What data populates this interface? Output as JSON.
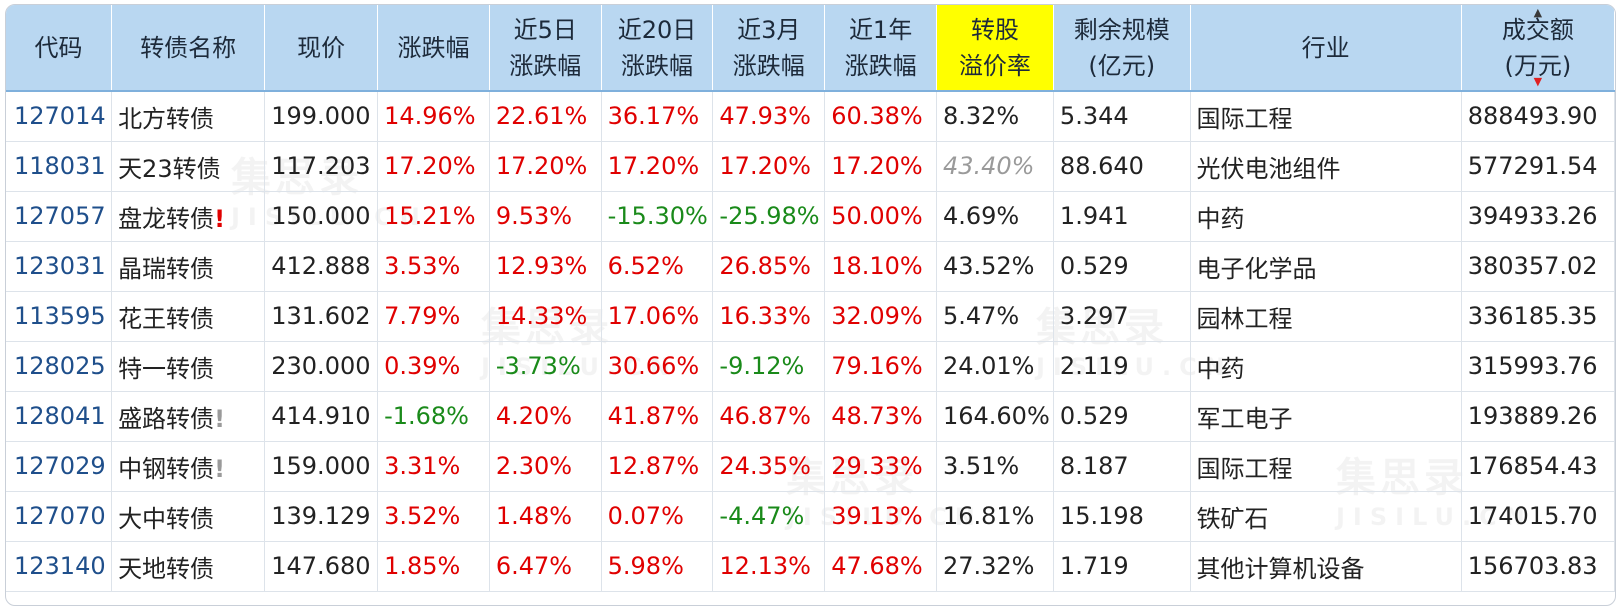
{
  "headers": {
    "code": "代码",
    "name": "转债名称",
    "price": "现价",
    "change": "涨跌幅",
    "chg5d": [
      "近5日",
      "涨跌幅"
    ],
    "chg20d": [
      "近20日",
      "涨跌幅"
    ],
    "chg3m": [
      "近3月",
      "涨跌幅"
    ],
    "chg1y": [
      "近1年",
      "涨跌幅"
    ],
    "premium": [
      "转股",
      "溢价率"
    ],
    "remaining": [
      "剩余规模",
      "(亿元)"
    ],
    "industry": "行业",
    "turnover": [
      "成交额",
      "(万元)"
    ]
  },
  "watermark": {
    "cn": "集思录",
    "en": "JISILU.CN"
  },
  "rows": [
    {
      "code": "127014",
      "name": "北方转债",
      "flag": "",
      "flag_color": "",
      "price": "199.000",
      "change": "14.96%",
      "chg5d": "22.61%",
      "chg20d": "36.17%",
      "chg3m": "47.93%",
      "chg1y": "60.38%",
      "premium": "8.32%",
      "premium_muted": false,
      "remaining": "5.344",
      "industry": "国际工程",
      "turnover": "888493.90"
    },
    {
      "code": "118031",
      "name": "天23转债",
      "flag": "",
      "flag_color": "",
      "price": "117.203",
      "change": "17.20%",
      "chg5d": "17.20%",
      "chg20d": "17.20%",
      "chg3m": "17.20%",
      "chg1y": "17.20%",
      "premium": "43.40%",
      "premium_muted": true,
      "remaining": "88.640",
      "industry": "光伏电池组件",
      "turnover": "577291.54"
    },
    {
      "code": "127057",
      "name": "盘龙转债",
      "flag": "!",
      "flag_color": "red",
      "price": "150.000",
      "change": "15.21%",
      "chg5d": "9.53%",
      "chg20d": "-15.30%",
      "chg3m": "-25.98%",
      "chg1y": "50.00%",
      "premium": "4.69%",
      "premium_muted": false,
      "remaining": "1.941",
      "industry": "中药",
      "turnover": "394933.26"
    },
    {
      "code": "123031",
      "name": "晶瑞转债",
      "flag": "",
      "flag_color": "",
      "price": "412.888",
      "change": "3.53%",
      "chg5d": "12.93%",
      "chg20d": "6.52%",
      "chg3m": "26.85%",
      "chg1y": "18.10%",
      "premium": "43.52%",
      "premium_muted": false,
      "remaining": "0.529",
      "industry": "电子化学品",
      "turnover": "380357.02"
    },
    {
      "code": "113595",
      "name": "花王转债",
      "flag": "",
      "flag_color": "",
      "price": "131.602",
      "change": "7.79%",
      "chg5d": "14.33%",
      "chg20d": "17.06%",
      "chg3m": "16.33%",
      "chg1y": "32.09%",
      "premium": "5.47%",
      "premium_muted": false,
      "remaining": "3.297",
      "industry": "园林工程",
      "turnover": "336185.35"
    },
    {
      "code": "128025",
      "name": "特一转债",
      "flag": "",
      "flag_color": "",
      "price": "230.000",
      "change": "0.39%",
      "chg5d": "-3.73%",
      "chg20d": "30.66%",
      "chg3m": "-9.12%",
      "chg1y": "79.16%",
      "premium": "24.01%",
      "premium_muted": false,
      "remaining": "2.119",
      "industry": "中药",
      "turnover": "315993.76"
    },
    {
      "code": "128041",
      "name": "盛路转债",
      "flag": "!",
      "flag_color": "gray",
      "price": "414.910",
      "change": "-1.68%",
      "chg5d": "4.20%",
      "chg20d": "41.87%",
      "chg3m": "46.87%",
      "chg1y": "48.73%",
      "premium": "164.60%",
      "premium_muted": false,
      "remaining": "0.529",
      "industry": "军工电子",
      "turnover": "193889.26"
    },
    {
      "code": "127029",
      "name": "中钢转债",
      "flag": "!",
      "flag_color": "gray",
      "price": "159.000",
      "change": "3.31%",
      "chg5d": "2.30%",
      "chg20d": "12.87%",
      "chg3m": "24.35%",
      "chg1y": "29.33%",
      "premium": "3.51%",
      "premium_muted": false,
      "remaining": "8.187",
      "industry": "国际工程",
      "turnover": "176854.43"
    },
    {
      "code": "127070",
      "name": "大中转债",
      "flag": "",
      "flag_color": "",
      "price": "139.129",
      "change": "3.52%",
      "chg5d": "1.48%",
      "chg20d": "0.07%",
      "chg3m": "-4.47%",
      "chg1y": "39.13%",
      "premium": "16.81%",
      "premium_muted": false,
      "remaining": "15.198",
      "industry": "铁矿石",
      "turnover": "174015.70"
    },
    {
      "code": "123140",
      "name": "天地转债",
      "flag": "",
      "flag_color": "",
      "price": "147.680",
      "change": "1.85%",
      "chg5d": "6.47%",
      "chg20d": "5.98%",
      "chg3m": "12.13%",
      "chg1y": "47.68%",
      "premium": "27.32%",
      "premium_muted": false,
      "remaining": "1.719",
      "industry": "其他计算机设备",
      "turnover": "156703.83"
    }
  ],
  "colors": {
    "up": "#e00000",
    "down": "#1a8a1a",
    "code_link": "#1f4f8b",
    "header_bg": "#b9d7f1",
    "highlight": "#ffff00"
  }
}
